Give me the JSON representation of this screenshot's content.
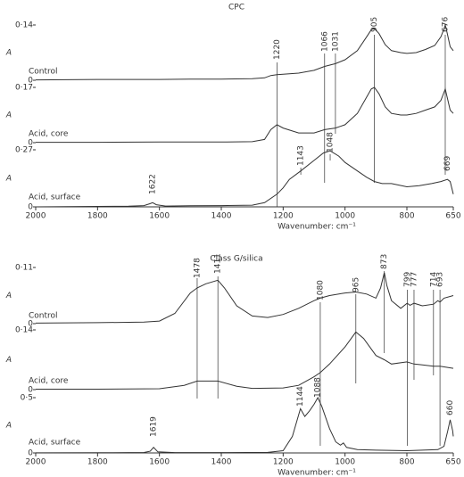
{
  "chart_data": [
    {
      "type": "line",
      "title": "CPC",
      "xlabel": "Wavenumber: cm⁻¹",
      "ylabel": "A",
      "xlim": [
        2000,
        650
      ],
      "xticks": [
        2000,
        1800,
        1600,
        1400,
        1200,
        1000,
        800,
        650
      ],
      "series": [
        {
          "name": "Control",
          "color": "#333333",
          "ylim": [
            0,
            0.14
          ],
          "yticks": [
            0,
            {
              "value": 0.14,
              "label": "0·14"
            }
          ],
          "x": [
            2000,
            1800,
            1600,
            1500,
            1400,
            1300,
            1260,
            1240,
            1220,
            1150,
            1100,
            1066,
            1031,
            1000,
            960,
            930,
            915,
            905,
            890,
            870,
            850,
            820,
            800,
            770,
            740,
            710,
            690,
            680,
            676,
            670,
            660,
            650
          ],
          "values": [
            0.001,
            0.002,
            0.002,
            0.003,
            0.003,
            0.004,
            0.006,
            0.012,
            0.014,
            0.018,
            0.025,
            0.035,
            0.042,
            0.052,
            0.075,
            0.11,
            0.128,
            0.131,
            0.118,
            0.09,
            0.075,
            0.07,
            0.068,
            0.07,
            0.078,
            0.088,
            0.11,
            0.13,
            0.14,
            0.12,
            0.085,
            0.075
          ]
        },
        {
          "name": "Acid, core",
          "color": "#333333",
          "ylim": [
            0,
            0.17
          ],
          "yticks": [
            0,
            {
              "value": 0.17,
              "label": "0·17"
            }
          ],
          "x": [
            2000,
            1800,
            1600,
            1400,
            1300,
            1260,
            1240,
            1220,
            1200,
            1150,
            1100,
            1066,
            1031,
            1000,
            960,
            930,
            915,
            905,
            890,
            870,
            850,
            820,
            800,
            770,
            740,
            710,
            690,
            680,
            676,
            670,
            660,
            650
          ],
          "values": [
            0.001,
            0.001,
            0.002,
            0.002,
            0.003,
            0.01,
            0.04,
            0.055,
            0.045,
            0.03,
            0.03,
            0.04,
            0.045,
            0.055,
            0.09,
            0.14,
            0.165,
            0.17,
            0.15,
            0.11,
            0.09,
            0.085,
            0.085,
            0.09,
            0.1,
            0.11,
            0.13,
            0.155,
            0.165,
            0.14,
            0.1,
            0.09
          ]
        },
        {
          "name": "Acid, surface",
          "color": "#333333",
          "ylim": [
            0,
            0.27
          ],
          "yticks": [
            0,
            {
              "value": 0.27,
              "label": "0·27"
            }
          ],
          "x": [
            2000,
            1800,
            1700,
            1650,
            1630,
            1622,
            1610,
            1580,
            1500,
            1400,
            1300,
            1260,
            1220,
            1200,
            1180,
            1143,
            1100,
            1070,
            1048,
            1020,
            1000,
            960,
            930,
            905,
            880,
            850,
            800,
            760,
            720,
            690,
            669,
            660,
            650
          ],
          "values": [
            0,
            0.002,
            0.003,
            0.006,
            0.015,
            0.02,
            0.01,
            0.004,
            0.005,
            0.006,
            0.008,
            0.02,
            0.06,
            0.09,
            0.13,
            0.17,
            0.22,
            0.255,
            0.265,
            0.24,
            0.21,
            0.17,
            0.14,
            0.12,
            0.11,
            0.11,
            0.095,
            0.1,
            0.11,
            0.12,
            0.13,
            0.12,
            0.06
          ]
        }
      ],
      "peaks": [
        1220,
        1066,
        1031,
        905,
        676,
        1622,
        1143,
        1048,
        669
      ]
    },
    {
      "type": "line",
      "title": "Class G/silica",
      "xlabel": "Wavenumber: cm⁻¹",
      "ylabel": "A",
      "xlim": [
        2000,
        650
      ],
      "xticks": [
        2000,
        1800,
        1600,
        1400,
        1200,
        1000,
        800,
        650
      ],
      "series": [
        {
          "name": "Control",
          "color": "#333333",
          "ylim": [
            0,
            0.11
          ],
          "yticks": [
            0,
            {
              "value": 0.11,
              "label": "0·11"
            }
          ],
          "x": [
            2000,
            1800,
            1650,
            1600,
            1550,
            1500,
            1478,
            1450,
            1411,
            1390,
            1350,
            1300,
            1250,
            1200,
            1150,
            1100,
            1080,
            1050,
            1000,
            965,
            930,
            900,
            885,
            873,
            865,
            850,
            820,
            799,
            790,
            777,
            750,
            714,
            700,
            693,
            680,
            650
          ],
          "values": [
            0.001,
            0.002,
            0.003,
            0.005,
            0.02,
            0.06,
            0.07,
            0.078,
            0.085,
            0.07,
            0.035,
            0.015,
            0.012,
            0.018,
            0.03,
            0.045,
            0.05,
            0.055,
            0.06,
            0.062,
            0.058,
            0.05,
            0.07,
            0.1,
            0.075,
            0.045,
            0.03,
            0.04,
            0.036,
            0.04,
            0.035,
            0.038,
            0.045,
            0.042,
            0.05,
            0.055
          ]
        },
        {
          "name": "Acid, core",
          "color": "#333333",
          "ylim": [
            0,
            0.14
          ],
          "yticks": [
            0,
            {
              "value": 0.14,
              "label": "0·14"
            }
          ],
          "x": [
            2000,
            1800,
            1600,
            1520,
            1478,
            1411,
            1350,
            1300,
            1200,
            1150,
            1100,
            1080,
            1050,
            1000,
            965,
            940,
            900,
            873,
            850,
            800,
            777,
            750,
            714,
            693,
            650
          ],
          "values": [
            0.001,
            0.001,
            0.002,
            0.01,
            0.02,
            0.02,
            0.008,
            0.003,
            0.004,
            0.01,
            0.03,
            0.04,
            0.06,
            0.1,
            0.135,
            0.12,
            0.08,
            0.07,
            0.06,
            0.065,
            0.06,
            0.058,
            0.055,
            0.055,
            0.05
          ]
        },
        {
          "name": "Acid, surface",
          "color": "#333333",
          "ylim": [
            0,
            0.5
          ],
          "yticks": [
            0,
            {
              "value": 0.5,
              "label": "0·5"
            }
          ],
          "x": [
            2000,
            1800,
            1650,
            1630,
            1619,
            1605,
            1550,
            1400,
            1250,
            1200,
            1170,
            1144,
            1130,
            1115,
            1100,
            1088,
            1075,
            1050,
            1030,
            1015,
            1005,
            995,
            960,
            900,
            800,
            700,
            680,
            668,
            660,
            652,
            650
          ],
          "values": [
            0.001,
            0.002,
            0.004,
            0.015,
            0.05,
            0.01,
            0.003,
            0.003,
            0.005,
            0.02,
            0.15,
            0.4,
            0.33,
            0.38,
            0.44,
            0.5,
            0.42,
            0.22,
            0.1,
            0.07,
            0.09,
            0.05,
            0.03,
            0.025,
            0.02,
            0.03,
            0.06,
            0.2,
            0.3,
            0.2,
            0.15
          ]
        }
      ],
      "peaks": [
        1478,
        1411,
        1080,
        965,
        873,
        799,
        777,
        714,
        693,
        1619,
        1144,
        1088,
        660
      ]
    }
  ]
}
